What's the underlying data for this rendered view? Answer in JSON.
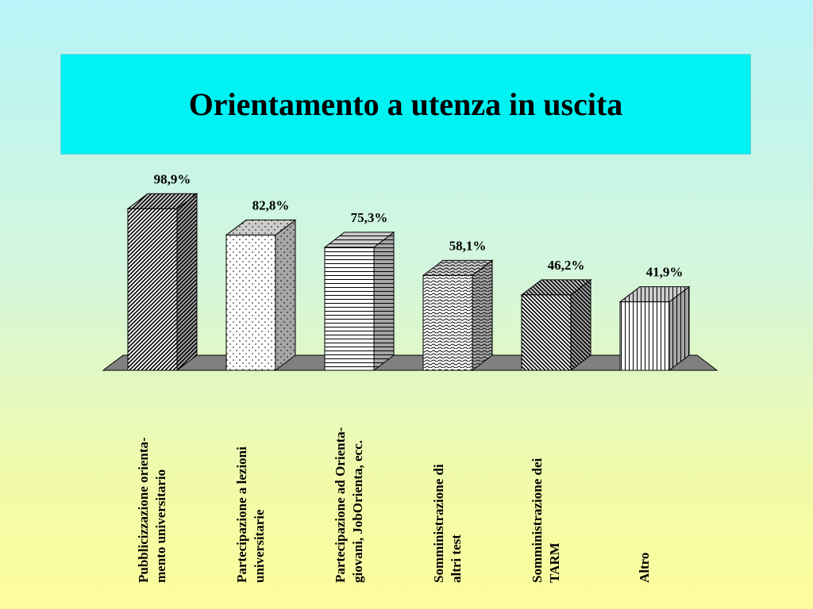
{
  "slide": {
    "title": "Orientamento a utenza in uscita"
  },
  "chart_data": {
    "type": "bar",
    "title": "",
    "categories": [
      "Pubblicizzazione orienta-\nmento universitario",
      "Partecipazione a lezioni\nuniversitarie",
      "Partecipazione ad Orienta-\ngiovani, JobOrienta, ecc.",
      "Somministrazione di\naltri test",
      "Somministrazione dei\nTARM",
      "Altro"
    ],
    "values": [
      98.9,
      82.8,
      75.3,
      58.1,
      46.2,
      41.9
    ],
    "value_labels": [
      "98,9%",
      "82,8%",
      "75,3%",
      "58,1%",
      "46,2%",
      "41,9%"
    ],
    "xlabel": "",
    "ylabel": "",
    "ylim": [
      0,
      100
    ],
    "grid": false,
    "legend": "none",
    "style": "3d-column",
    "patterns": [
      "diag-up",
      "dots",
      "horizontal-lines",
      "wave",
      "diag-down",
      "vertical-lines"
    ]
  },
  "colors": {
    "title_bg": "#00f2f2",
    "floor": "#808080",
    "bar_edge": "#000000"
  }
}
